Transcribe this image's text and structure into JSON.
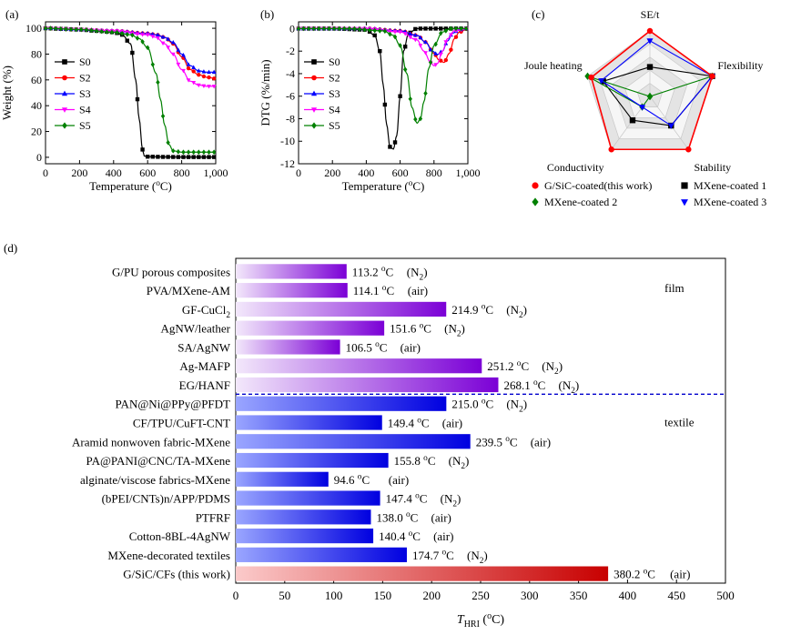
{
  "chart_data": [
    {
      "panel": "(a)",
      "type": "line",
      "xlabel": "Temperature (oC)",
      "ylabel": "Weight (%)",
      "xlim": [
        0,
        1000
      ],
      "ylim": [
        -5,
        105
      ],
      "xticks": [
        "0",
        "200",
        "400",
        "600",
        "800",
        "1,000"
      ],
      "yticks": [
        "0",
        "20",
        "40",
        "60",
        "80",
        "100"
      ],
      "legend_position": "center-left",
      "series": [
        {
          "name": "S0",
          "color": "#000000",
          "marker": "square",
          "x": [
            0,
            100,
            200,
            300,
            400,
            450,
            500,
            530,
            550,
            570,
            580,
            600,
            700,
            800,
            900,
            1000
          ],
          "y": [
            100,
            99.5,
            99,
            98,
            97,
            95,
            88,
            60,
            30,
            6,
            1,
            0.5,
            0.3,
            0.2,
            0.2,
            0.2
          ]
        },
        {
          "name": "S2",
          "color": "#ff0000",
          "marker": "circle",
          "x": [
            0,
            200,
            400,
            600,
            650,
            700,
            750,
            800,
            850,
            900,
            950,
            1000
          ],
          "y": [
            100,
            99,
            98,
            96,
            95,
            93,
            88,
            78,
            68,
            64,
            62,
            61
          ]
        },
        {
          "name": "S3",
          "color": "#0000ff",
          "marker": "triangle",
          "x": [
            0,
            200,
            400,
            600,
            650,
            700,
            750,
            800,
            850,
            900,
            950,
            1000
          ],
          "y": [
            100,
            99,
            98,
            96,
            95,
            93,
            89,
            80,
            71,
            67,
            66,
            66
          ]
        },
        {
          "name": "S4",
          "color": "#ff00ff",
          "marker": "triangle-down",
          "x": [
            0,
            200,
            400,
            600,
            650,
            700,
            750,
            800,
            850,
            900,
            950,
            1000
          ],
          "y": [
            100,
            99,
            98,
            95,
            93,
            88,
            80,
            68,
            59,
            56,
            55,
            55
          ]
        },
        {
          "name": "S5",
          "color": "#008000",
          "marker": "diamond",
          "x": [
            0,
            200,
            400,
            500,
            550,
            600,
            650,
            675,
            700,
            725,
            750,
            800,
            900,
            1000
          ],
          "y": [
            100,
            99,
            97,
            95,
            92,
            85,
            65,
            45,
            25,
            10,
            5,
            4,
            4,
            4
          ]
        }
      ]
    },
    {
      "panel": "(b)",
      "type": "line",
      "xlabel": "Temperature (oC)",
      "ylabel": "DTG (%/min)",
      "xlim": [
        0,
        1000
      ],
      "ylim": [
        -12,
        0.6
      ],
      "xticks": [
        "0",
        "200",
        "400",
        "600",
        "800",
        "1,000"
      ],
      "yticks": [
        "-12",
        "-10",
        "-8",
        "-6",
        "-4",
        "-2",
        "0"
      ],
      "legend_position": "center-left",
      "series": [
        {
          "name": "S0",
          "color": "#000000",
          "marker": "square",
          "x": [
            0,
            200,
            400,
            450,
            480,
            500,
            520,
            540,
            560,
            580,
            600,
            620,
            650,
            700,
            800,
            1000
          ],
          "y": [
            0,
            0,
            -0.1,
            -0.6,
            -2,
            -5,
            -8.5,
            -10.5,
            -10.7,
            -9.5,
            -6,
            -2,
            -0.4,
            0,
            0,
            0
          ]
        },
        {
          "name": "S2",
          "color": "#ff0000",
          "marker": "circle",
          "x": [
            0,
            400,
            600,
            700,
            750,
            800,
            830,
            860,
            890,
            920,
            950,
            1000
          ],
          "y": [
            0,
            0,
            -0.2,
            -0.6,
            -1.2,
            -2.2,
            -2.8,
            -3.0,
            -2.2,
            -0.9,
            -0.3,
            0
          ]
        },
        {
          "name": "S3",
          "color": "#0000ff",
          "marker": "triangle",
          "x": [
            0,
            400,
            600,
            700,
            750,
            790,
            820,
            850,
            880,
            910,
            950,
            1000
          ],
          "y": [
            0,
            0,
            -0.2,
            -0.6,
            -1.2,
            -2.0,
            -2.3,
            -2.0,
            -1.1,
            -0.4,
            -0.1,
            0
          ]
        },
        {
          "name": "S4",
          "color": "#ff00ff",
          "marker": "triangle-down",
          "x": [
            0,
            400,
            600,
            700,
            740,
            780,
            800,
            820,
            850,
            880,
            920,
            1000
          ],
          "y": [
            0,
            0,
            -0.3,
            -1.0,
            -2.0,
            -3.0,
            -3.3,
            -3.1,
            -2.0,
            -0.9,
            -0.2,
            0
          ]
        },
        {
          "name": "S5",
          "color": "#008000",
          "marker": "diamond",
          "x": [
            0,
            300,
            500,
            560,
            600,
            640,
            670,
            700,
            720,
            740,
            770,
            800,
            850,
            900,
            1000
          ],
          "y": [
            0,
            0,
            -0.2,
            -0.6,
            -1.5,
            -4,
            -7,
            -8.4,
            -8.0,
            -6.5,
            -3.5,
            -1.5,
            -0.3,
            0,
            0
          ]
        }
      ]
    },
    {
      "panel": "(c)",
      "type": "radar",
      "axes": [
        "SE/t",
        "Flexibility",
        "Stability",
        "Conductivity",
        "Joule heating"
      ],
      "rings": 5,
      "max": 1,
      "series": [
        {
          "name": "G/SiC-coated(this work)",
          "color": "#ff0000",
          "marker": "circle",
          "values": [
            1.0,
            1.0,
            1.0,
            1.0,
            0.94
          ]
        },
        {
          "name": "MXene-coated 1",
          "color": "#000000",
          "marker": "square",
          "values": [
            0.45,
            1.0,
            0.55,
            0.45,
            0.75
          ]
        },
        {
          "name": "MXene-coated 2",
          "color": "#008000",
          "marker": "diamond",
          "values": [
            0.0,
            1.0,
            0.0,
            0.2,
            1.0
          ]
        },
        {
          "name": "MXene-coated 3",
          "color": "#0000ff",
          "marker": "triangle-down",
          "values": [
            0.85,
            1.0,
            0.55,
            0.2,
            0.78
          ]
        }
      ]
    },
    {
      "panel": "(d)",
      "type": "bar",
      "orientation": "horizontal",
      "xlabel": "T_HRI (oC)",
      "xlim": [
        0,
        500
      ],
      "xticks": [
        "0",
        "50",
        "100",
        "150",
        "200",
        "250",
        "300",
        "350",
        "400",
        "450",
        "500"
      ],
      "group_labels": {
        "film": "film",
        "textile": "textile"
      },
      "bars": [
        {
          "category": "G/PU porous composites",
          "value": 113.2,
          "label": "113.2 oC",
          "atmosphere": "(N2)",
          "group": "film"
        },
        {
          "category": "PVA/MXene-AM",
          "value": 114.1,
          "label": "114.1 oC",
          "atmosphere": "(air)",
          "group": "film"
        },
        {
          "category": "GF-CuCl2",
          "value": 214.9,
          "label": "214.9 oC",
          "atmosphere": "(N2)",
          "group": "film"
        },
        {
          "category": "AgNW/leather",
          "value": 151.6,
          "label": "151.6 oC",
          "atmosphere": "(N2)",
          "group": "film"
        },
        {
          "category": "SA/AgNW",
          "value": 106.5,
          "label": "106.5 oC",
          "atmosphere": "(air)",
          "group": "film"
        },
        {
          "category": "Ag-MAFP",
          "value": 251.2,
          "label": "251.2 oC",
          "atmosphere": "(N2)",
          "group": "film"
        },
        {
          "category": "EG/HANF",
          "value": 268.1,
          "label": "268.1 oC",
          "atmosphere": "(N2)",
          "group": "film"
        },
        {
          "category": "PAN@Ni@PPy@PFDT",
          "value": 215.0,
          "label": "215.0 oC",
          "atmosphere": "(N2)",
          "group": "textile"
        },
        {
          "category": "CF/TPU/CuFT-CNT",
          "value": 149.4,
          "label": "149.4 oC",
          "atmosphere": "(air)",
          "group": "textile"
        },
        {
          "category": "Aramid nonwoven fabric-MXene",
          "value": 239.5,
          "label": "239.5 oC",
          "atmosphere": "(air)",
          "group": "textile"
        },
        {
          "category": "PA@PANI@CNC/TA-MXene",
          "value": 155.8,
          "label": "155.8 oC",
          "atmosphere": "(N2)",
          "group": "textile"
        },
        {
          "category": "alginate/viscose fabrics-MXene",
          "value": 94.6,
          "label": "94.6 oC",
          "atmosphere": "(air)",
          "group": "textile"
        },
        {
          "category": "(bPEI/CNTs)n/APP/PDMS",
          "value": 147.4,
          "label": "147.4 oC",
          "atmosphere": "(N2)",
          "group": "textile"
        },
        {
          "category": "PTFRF",
          "value": 138.0,
          "label": "138.0 oC",
          "atmosphere": "(air)",
          "group": "textile"
        },
        {
          "category": "Cotton-8BL-4AgNW",
          "value": 140.4,
          "label": "140.4 oC",
          "atmosphere": "(air)",
          "group": "textile"
        },
        {
          "category": "MXene-decorated textiles",
          "value": 174.7,
          "label": "174.7 oC",
          "atmosphere": "(N2)",
          "group": "textile"
        },
        {
          "category": "G/SiC/CFs (this work)",
          "value": 380.2,
          "label": "380.2 oC",
          "atmosphere": "(air)",
          "group": "this-work"
        }
      ]
    }
  ]
}
